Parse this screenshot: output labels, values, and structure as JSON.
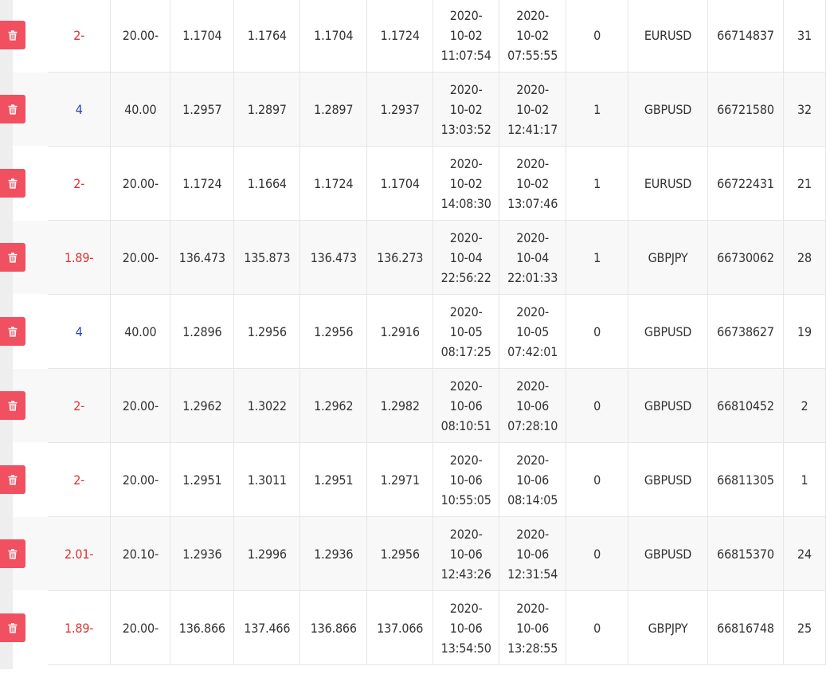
{
  "colors": {
    "negative": "#dd3333",
    "positive": "#3344aa",
    "delete_button": "#f0505f"
  },
  "delete_icon": "trash-icon",
  "rows": [
    {
      "profit": "2-",
      "profit_sign": "negative",
      "commission": "20.00-",
      "open_price": "1.1704",
      "sl": "1.1764",
      "tp": "1.1704",
      "close_price": "1.1724",
      "close_date": "2020-",
      "close_md": "10-02",
      "close_time": "11:07:54",
      "open_date": "2020-",
      "open_md": "10-02",
      "open_time": "07:55:55",
      "type": "0",
      "symbol": "EURUSD",
      "ticket": "66714837",
      "id": "31"
    },
    {
      "profit": "4",
      "profit_sign": "positive",
      "commission": "40.00",
      "open_price": "1.2957",
      "sl": "1.2897",
      "tp": "1.2897",
      "close_price": "1.2937",
      "close_date": "2020-",
      "close_md": "10-02",
      "close_time": "13:03:52",
      "open_date": "2020-",
      "open_md": "10-02",
      "open_time": "12:41:17",
      "type": "1",
      "symbol": "GBPUSD",
      "ticket": "66721580",
      "id": "32"
    },
    {
      "profit": "2-",
      "profit_sign": "negative",
      "commission": "20.00-",
      "open_price": "1.1724",
      "sl": "1.1664",
      "tp": "1.1724",
      "close_price": "1.1704",
      "close_date": "2020-",
      "close_md": "10-02",
      "close_time": "14:08:30",
      "open_date": "2020-",
      "open_md": "10-02",
      "open_time": "13:07:46",
      "type": "1",
      "symbol": "EURUSD",
      "ticket": "66722431",
      "id": "21"
    },
    {
      "profit": "1.89-",
      "profit_sign": "negative",
      "commission": "20.00-",
      "open_price": "136.473",
      "sl": "135.873",
      "tp": "136.473",
      "close_price": "136.273",
      "close_date": "2020-",
      "close_md": "10-04",
      "close_time": "22:56:22",
      "open_date": "2020-",
      "open_md": "10-04",
      "open_time": "22:01:33",
      "type": "1",
      "symbol": "GBPJPY",
      "ticket": "66730062",
      "id": "28"
    },
    {
      "profit": "4",
      "profit_sign": "positive",
      "commission": "40.00",
      "open_price": "1.2896",
      "sl": "1.2956",
      "tp": "1.2956",
      "close_price": "1.2916",
      "close_date": "2020-",
      "close_md": "10-05",
      "close_time": "08:17:25",
      "open_date": "2020-",
      "open_md": "10-05",
      "open_time": "07:42:01",
      "type": "0",
      "symbol": "GBPUSD",
      "ticket": "66738627",
      "id": "19"
    },
    {
      "profit": "2-",
      "profit_sign": "negative",
      "commission": "20.00-",
      "open_price": "1.2962",
      "sl": "1.3022",
      "tp": "1.2962",
      "close_price": "1.2982",
      "close_date": "2020-",
      "close_md": "10-06",
      "close_time": "08:10:51",
      "open_date": "2020-",
      "open_md": "10-06",
      "open_time": "07:28:10",
      "type": "0",
      "symbol": "GBPUSD",
      "ticket": "66810452",
      "id": "2"
    },
    {
      "profit": "2-",
      "profit_sign": "negative",
      "commission": "20.00-",
      "open_price": "1.2951",
      "sl": "1.3011",
      "tp": "1.2951",
      "close_price": "1.2971",
      "close_date": "2020-",
      "close_md": "10-06",
      "close_time": "10:55:05",
      "open_date": "2020-",
      "open_md": "10-06",
      "open_time": "08:14:05",
      "type": "0",
      "symbol": "GBPUSD",
      "ticket": "66811305",
      "id": "1"
    },
    {
      "profit": "2.01-",
      "profit_sign": "negative",
      "commission": "20.10-",
      "open_price": "1.2936",
      "sl": "1.2996",
      "tp": "1.2936",
      "close_price": "1.2956",
      "close_date": "2020-",
      "close_md": "10-06",
      "close_time": "12:43:26",
      "open_date": "2020-",
      "open_md": "10-06",
      "open_time": "12:31:54",
      "type": "0",
      "symbol": "GBPUSD",
      "ticket": "66815370",
      "id": "24"
    },
    {
      "profit": "1.89-",
      "profit_sign": "negative",
      "commission": "20.00-",
      "open_price": "136.866",
      "sl": "137.466",
      "tp": "136.866",
      "close_price": "137.066",
      "close_date": "2020-",
      "close_md": "10-06",
      "close_time": "13:54:50",
      "open_date": "2020-",
      "open_md": "10-06",
      "open_time": "13:28:55",
      "type": "0",
      "symbol": "GBPJPY",
      "ticket": "66816748",
      "id": "25"
    }
  ]
}
